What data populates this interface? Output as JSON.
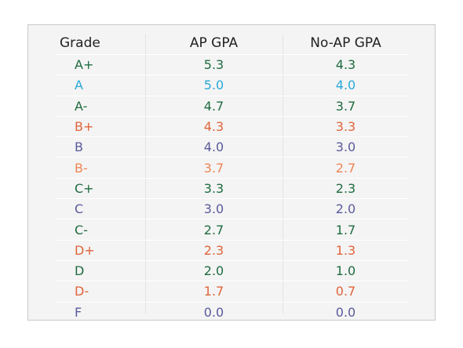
{
  "table": {
    "headers": {
      "grade": "Grade",
      "ap": "AP GPA",
      "noap": "No-AP GPA"
    },
    "colors": {
      "green": "#1e6b40",
      "blue": "#2aa8d9",
      "orange": "#e0643a",
      "purple": "#5a5a9c",
      "light_orange": "#ee8454"
    },
    "rows": [
      {
        "grade": "A+",
        "ap": "5.3",
        "noap": "4.3",
        "color": "#1e6b40"
      },
      {
        "grade": "A",
        "ap": "5.0",
        "noap": "4.0",
        "color": "#2aa8d9"
      },
      {
        "grade": "A-",
        "ap": "4.7",
        "noap": "3.7",
        "color": "#1e6b40"
      },
      {
        "grade": "B+",
        "ap": "4.3",
        "noap": "3.3",
        "color": "#e0643a"
      },
      {
        "grade": "B",
        "ap": "4.0",
        "noap": "3.0",
        "color": "#5a5a9c"
      },
      {
        "grade": "B-",
        "ap": "3.7",
        "noap": "2.7",
        "color": "#ee8454"
      },
      {
        "grade": "C+",
        "ap": "3.3",
        "noap": "2.3",
        "color": "#1e6b40"
      },
      {
        "grade": "C",
        "ap": "3.0",
        "noap": "2.0",
        "color": "#5a5a9c"
      },
      {
        "grade": "C-",
        "ap": "2.7",
        "noap": "1.7",
        "color": "#1e6b40"
      },
      {
        "grade": "D+",
        "ap": "2.3",
        "noap": "1.3",
        "color": "#e0643a"
      },
      {
        "grade": "D",
        "ap": "2.0",
        "noap": "1.0",
        "color": "#1e6b40"
      },
      {
        "grade": "D-",
        "ap": "1.7",
        "noap": "0.7",
        "color": "#e0643a"
      },
      {
        "grade": "F",
        "ap": "0.0",
        "noap": "0.0",
        "color": "#5a5a9c"
      }
    ]
  }
}
